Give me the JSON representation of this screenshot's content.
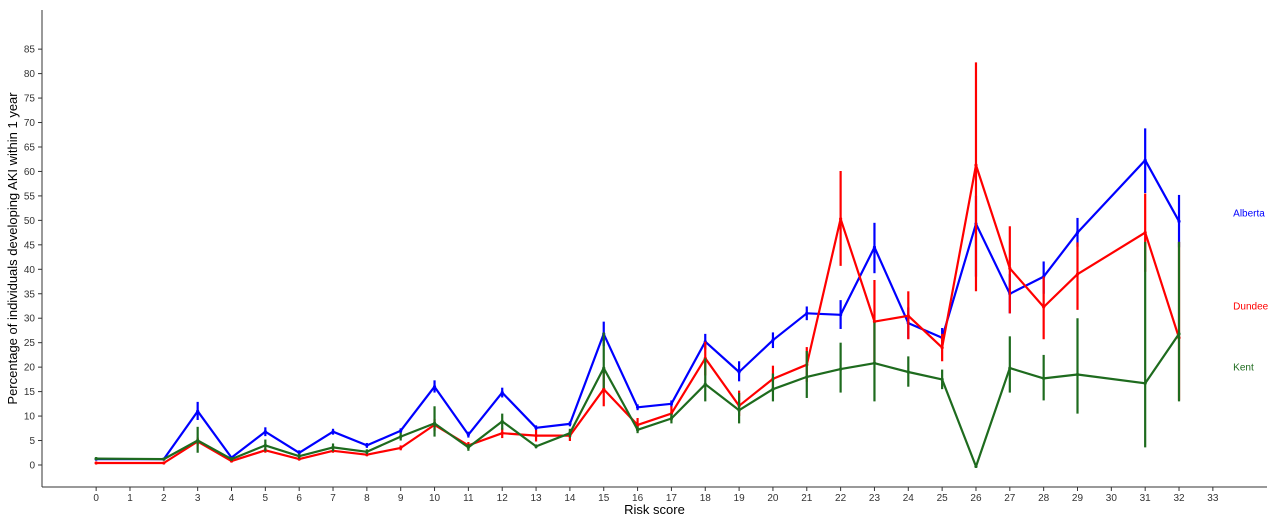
{
  "chart_data": {
    "type": "line",
    "title": "",
    "xlabel": "Risk score",
    "ylabel": "Percentage of individuals developing AKI within 1 year",
    "x_ticks": [
      0,
      1,
      2,
      3,
      4,
      5,
      6,
      7,
      8,
      9,
      10,
      11,
      12,
      13,
      14,
      15,
      16,
      17,
      18,
      19,
      20,
      21,
      22,
      23,
      24,
      25,
      26,
      27,
      28,
      29,
      30,
      31,
      32,
      33
    ],
    "y_ticks": [
      0,
      5,
      10,
      15,
      20,
      25,
      30,
      35,
      40,
      45,
      50,
      55,
      60,
      65,
      70,
      75,
      80,
      85
    ],
    "xlim": [
      -1.6,
      34.6
    ],
    "ylim": [
      -4.5,
      93
    ],
    "grid": false,
    "legend": "inline labels at right end of each line",
    "series": [
      {
        "name": "Alberta",
        "color": "#0000ff",
        "x": [
          0,
          2,
          3,
          4,
          5,
          6,
          7,
          8,
          9,
          10,
          11,
          12,
          13,
          14,
          15,
          16,
          17,
          18,
          19,
          20,
          21,
          22,
          23,
          24,
          25,
          26,
          27,
          28,
          29,
          31,
          32
        ],
        "y": [
          1.2,
          1.2,
          11,
          1.5,
          6.8,
          2.5,
          6.8,
          4,
          7,
          16,
          6.2,
          14.8,
          7.6,
          8.4,
          26.8,
          11.8,
          12.5,
          25.2,
          19,
          25.5,
          31,
          30.7,
          44.5,
          29,
          26,
          49.3,
          35,
          38.5,
          47.5,
          62.3,
          49.8
        ],
        "err_low": [
          0.9,
          0.9,
          9.2,
          1.2,
          5.9,
          2,
          6.2,
          3.5,
          6.5,
          14.8,
          5.6,
          13.8,
          7.1,
          7.9,
          24.3,
          11.2,
          11.8,
          23.6,
          17.1,
          23.9,
          29.6,
          27.8,
          39.2,
          25.8,
          24.5,
          38.5,
          31,
          35,
          44.6,
          55.6,
          44.5
        ],
        "err_high": [
          1.5,
          1.5,
          12.9,
          1.8,
          7.7,
          3,
          7.4,
          4.5,
          7.5,
          17.3,
          6.8,
          15.8,
          8.1,
          8.9,
          29.3,
          12.4,
          13.2,
          26.8,
          21.2,
          27.1,
          32.4,
          33.7,
          49.5,
          32.2,
          28,
          55,
          39,
          41.6,
          50.5,
          68.8,
          55.2
        ]
      },
      {
        "name": "Dundee",
        "color": "#ff0000",
        "x": [
          0,
          2,
          3,
          4,
          5,
          6,
          7,
          8,
          9,
          10,
          11,
          12,
          13,
          14,
          15,
          16,
          17,
          18,
          19,
          20,
          21,
          22,
          23,
          24,
          25,
          26,
          27,
          28,
          29,
          31,
          32
        ],
        "y": [
          0.4,
          0.4,
          4.8,
          0.8,
          3,
          1.2,
          2.9,
          2.1,
          3.5,
          8.2,
          4,
          6.5,
          6,
          6,
          15.5,
          8.2,
          10.5,
          21.8,
          12.1,
          17.6,
          20.5,
          50.3,
          29.3,
          30.5,
          24,
          61.3,
          40.2,
          32.3,
          39,
          47.5,
          26
        ],
        "err_low": [
          0.3,
          0.3,
          4,
          0.6,
          2.5,
          1,
          2.5,
          1.8,
          3,
          7,
          3.3,
          5.5,
          4.8,
          4.9,
          12,
          6.8,
          9,
          18.3,
          10,
          15,
          17,
          40.7,
          20.7,
          25.7,
          21.2,
          35.5,
          31,
          25.7,
          31.7,
          39.5,
          13.2
        ],
        "err_high": [
          0.5,
          0.5,
          5.6,
          1,
          3.5,
          1.4,
          3.3,
          2.4,
          4,
          9.4,
          4.7,
          7.5,
          7.2,
          7.1,
          19,
          9.6,
          12,
          25.2,
          15.2,
          20.3,
          24.1,
          60.1,
          37.8,
          35.5,
          26.8,
          82.3,
          48.8,
          38.5,
          45.5,
          55.5,
          45.6
        ]
      },
      {
        "name": "Kent",
        "color": "#1e6b1e",
        "x": [
          0,
          2,
          3,
          4,
          5,
          6,
          7,
          8,
          9,
          10,
          11,
          12,
          13,
          14,
          15,
          16,
          17,
          18,
          19,
          20,
          21,
          22,
          23,
          24,
          25,
          26,
          27,
          28,
          29,
          31,
          32
        ],
        "y": [
          1.3,
          1.2,
          5,
          1.2,
          4,
          1.8,
          3.6,
          2.7,
          5.8,
          8.5,
          3.6,
          8.9,
          3.8,
          6.5,
          19.8,
          7.2,
          9.5,
          16.5,
          11.2,
          15.5,
          18,
          19.6,
          20.8,
          19,
          17.5,
          -0.3,
          19.8,
          17.7,
          18.5,
          16.7,
          26.8
        ],
        "err_low": [
          1,
          1,
          2.5,
          0.8,
          2.8,
          1.3,
          2.8,
          2.2,
          5,
          5.8,
          2.9,
          7.2,
          3.4,
          5.6,
          15.7,
          6.5,
          8.5,
          13,
          8.5,
          13,
          13.7,
          14.8,
          13,
          16,
          15.5,
          -0.3,
          14.8,
          13.2,
          10.5,
          3.6,
          13
        ],
        "err_high": [
          1.6,
          1.4,
          7.8,
          1.6,
          5.2,
          2.3,
          4.4,
          3.2,
          6.6,
          12,
          4.3,
          10.5,
          4.2,
          7.4,
          27.1,
          7.9,
          10.5,
          21.8,
          14.7,
          18.7,
          23.3,
          25,
          29.1,
          22.2,
          19.5,
          -0.3,
          26.3,
          22.5,
          30,
          45.6,
          45.6
        ]
      }
    ]
  }
}
